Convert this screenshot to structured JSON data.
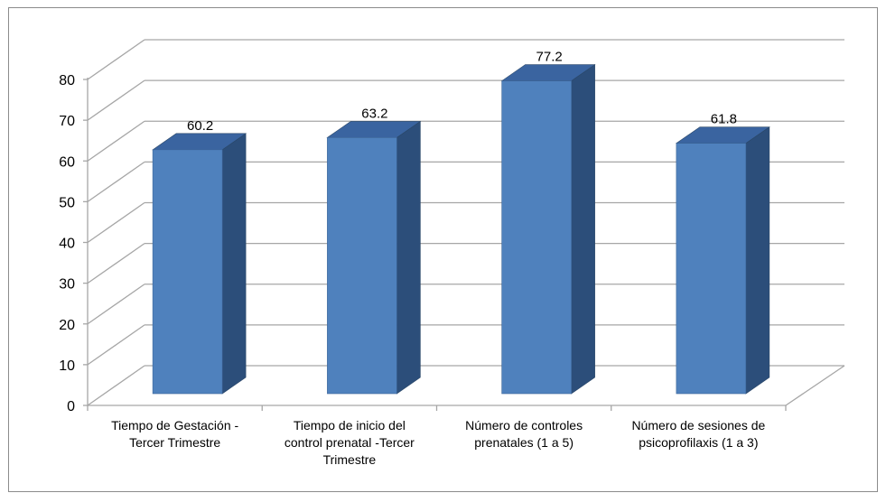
{
  "chart_data": {
    "type": "bar",
    "categories": [
      [
        "Tiempo de Gestación  -",
        "Tercer Trimestre"
      ],
      [
        "Tiempo de inicio del",
        "control prenatal -Tercer",
        "Trimestre"
      ],
      [
        "Número de controles",
        "prenatales (1 a 5)"
      ],
      [
        "Número de sesiones de",
        "psicoprofilaxis (1 a 3)"
      ]
    ],
    "values": [
      60.2,
      63.2,
      77.2,
      61.8
    ],
    "data_labels": [
      "60.2",
      "63.2",
      "77.2",
      "61.8"
    ],
    "y_ticks": [
      "0",
      "10",
      "20",
      "30",
      "40",
      "50",
      "60",
      "70",
      "80"
    ],
    "ylim": [
      0,
      80
    ],
    "grid": true,
    "style": "3d-column",
    "colors": {
      "bar_front": "#4f81bd",
      "bar_top": "#3a64a0",
      "bar_side": "#2c4e7a",
      "grid": "#a6a6a6",
      "frame": "#8c8c8c"
    }
  }
}
